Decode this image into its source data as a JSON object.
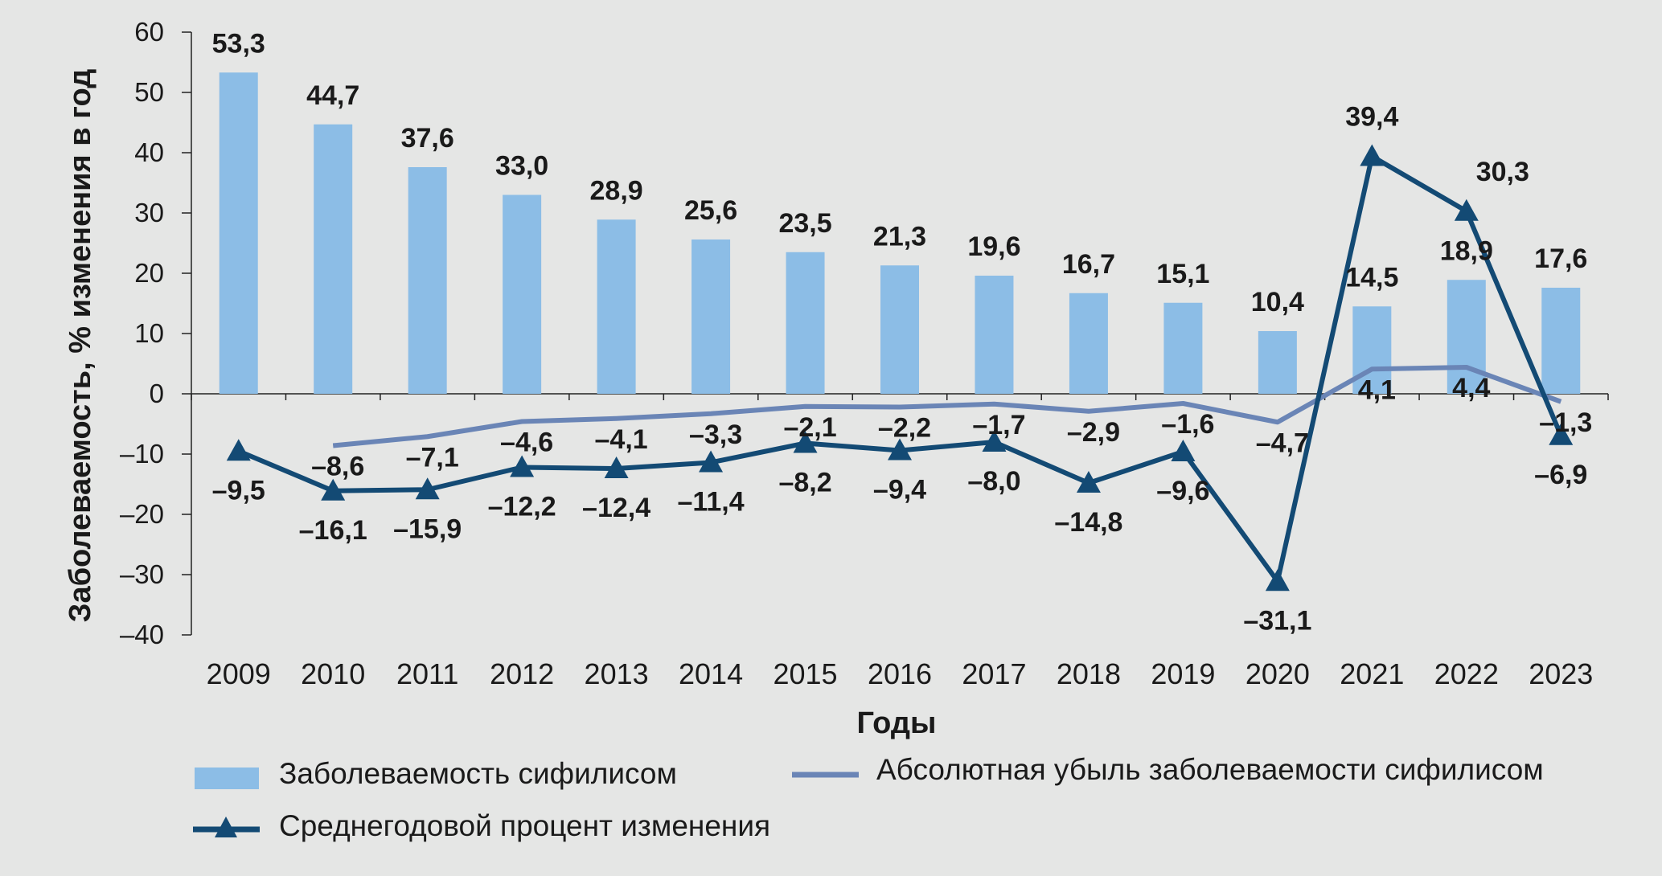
{
  "chart_data": {
    "type": "bar",
    "categories": [
      "2009",
      "2010",
      "2011",
      "2012",
      "2013",
      "2014",
      "2015",
      "2016",
      "2017",
      "2018",
      "2019",
      "2020",
      "2021",
      "2022",
      "2023"
    ],
    "xlabel": "Годы",
    "ylabel": "Заболеваемость, % изменения в год",
    "ylim": [
      -40,
      60
    ],
    "yticks": [
      "60",
      "50",
      "40",
      "30",
      "20",
      "10",
      "0",
      "–10",
      "–20",
      "–30",
      "–40"
    ],
    "grid": false,
    "legend_position": "bottom",
    "series": [
      {
        "name": "Заболеваемость сифилисом",
        "type": "bar",
        "color": "#8cbde6",
        "values": [
          53.3,
          44.7,
          37.6,
          33.0,
          28.9,
          25.6,
          23.5,
          21.3,
          19.6,
          16.7,
          15.1,
          10.4,
          14.5,
          18.9,
          17.6
        ],
        "labels": [
          "53,3",
          "44,7",
          "37,6",
          "33,0",
          "28,9",
          "25,6",
          "23,5",
          "21,3",
          "19,6",
          "16,7",
          "15,1",
          "10,4",
          "14,5",
          "18,9",
          "17,6"
        ]
      },
      {
        "name": "Абсолютная убыль заболеваемости сифилисом",
        "type": "line",
        "color": "#6a85b6",
        "values": [
          null,
          -8.6,
          -7.1,
          -4.6,
          -4.1,
          -3.3,
          -2.1,
          -2.2,
          -1.7,
          -2.9,
          -1.6,
          -4.7,
          4.1,
          4.4,
          -1.3
        ],
        "labels": [
          "",
          "–8,6",
          "–7,1",
          "–4,6",
          "–4,1",
          "–3,3",
          "–2,1",
          "–2,2",
          "–1,7",
          "–2,9",
          "–1,6",
          "–4,7",
          "4,1",
          "4,4",
          "–1,3"
        ]
      },
      {
        "name": "Среднегодовой процент изменения",
        "type": "line",
        "marker": "triangle",
        "color": "#134a74",
        "values": [
          -9.5,
          -16.1,
          -15.9,
          -12.2,
          -12.4,
          -11.4,
          -8.2,
          -9.4,
          -8.0,
          -14.8,
          -9.6,
          -31.1,
          39.4,
          30.3,
          -6.9
        ],
        "labels": [
          "–9,5",
          "–16,1",
          "–15,9",
          "–12,2",
          "–12,4",
          "–11,4",
          "–8,2",
          "–9,4",
          "–8,0",
          "–14,8",
          "–9,6",
          "–31,1",
          "39,4",
          "30,3",
          "–6,9"
        ]
      }
    ]
  }
}
